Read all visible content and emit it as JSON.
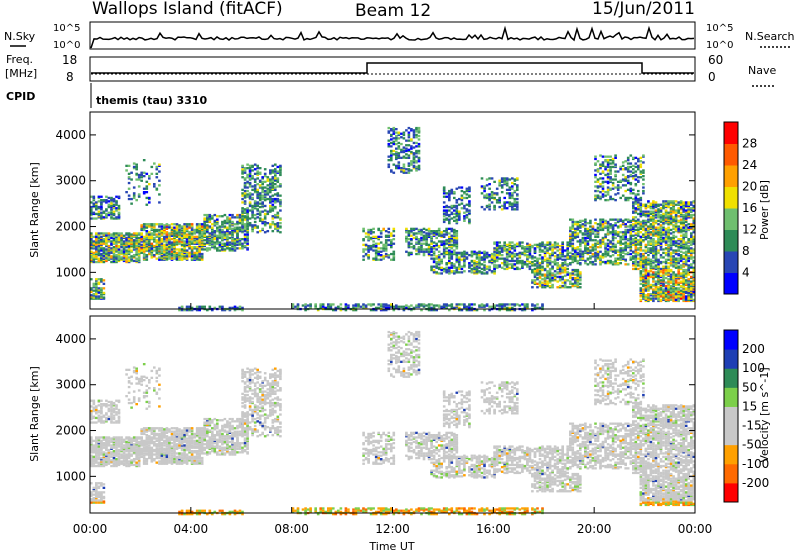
{
  "header": {
    "station": "Wallops Island (fitACF)",
    "beam": "Beam 12",
    "date": "15/Jun/2011"
  },
  "strip_panels": {
    "nsky_label": "N.Sky",
    "nsearch_label": "N.Search",
    "noise_ticks": [
      "10^5",
      "10^0"
    ],
    "freq_label": "Freq.",
    "freq_unit": "[MHz]",
    "freq_ticks": [
      "18",
      "8"
    ],
    "nave_label": "Nave",
    "nave_ticks": [
      "60",
      "0"
    ],
    "cpid_label": "CPID",
    "cpid_text": "themis (tau) 3310"
  },
  "colors": {
    "power_scale": [
      "#0000ff",
      "#2846b4",
      "#2e8b57",
      "#6fbf6f",
      "#f0e000",
      "#ffa000",
      "#ff5a00",
      "#ff0000"
    ],
    "velocity_scale": [
      "#ff0000",
      "#ff6a00",
      "#ffa000",
      "#c8c8c8",
      "#c8c8c8",
      "#7ccf4a",
      "#2e8b57",
      "#1e3fb4",
      "#0000ff"
    ],
    "gray": "#c8c8c8"
  },
  "chart_data": [
    {
      "type": "heatmap",
      "name": "power",
      "ylabel": "Slant Range [km]",
      "ylim": [
        200,
        4500
      ],
      "y_ticks": [
        "1000",
        "2000",
        "3000",
        "4000"
      ],
      "colorbar_label": "Power [dB]",
      "colorbar_ticks": [
        "4",
        "8",
        "12",
        "16",
        "20",
        "24",
        "28"
      ],
      "xlim": [
        0,
        24
      ]
    },
    {
      "type": "heatmap",
      "name": "velocity",
      "ylabel": "Slant Range [km]",
      "ylim": [
        200,
        4500
      ],
      "y_ticks": [
        "1000",
        "2000",
        "3000",
        "4000"
      ],
      "colorbar_label": "Velocity [m s^-1]",
      "colorbar_ticks": [
        "-200",
        "-100",
        "-50",
        "-15",
        "15",
        "50",
        "100",
        "200"
      ],
      "xlabel": "Time UT",
      "x_ticks": [
        "00:00",
        "04:00",
        "08:00",
        "12:00",
        "16:00",
        "20:00",
        "00:00"
      ],
      "xlim": [
        0,
        24
      ]
    }
  ]
}
